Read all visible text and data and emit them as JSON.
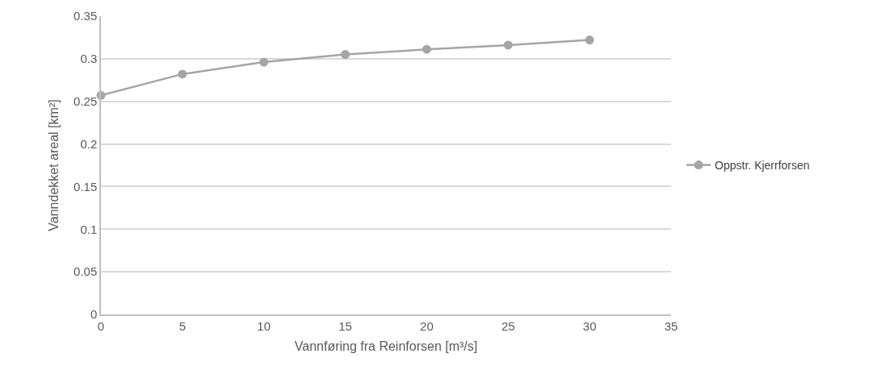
{
  "chart_data": {
    "type": "line",
    "xlabel": "Vannføring fra Reinforsen [m³/s]",
    "ylabel": "Vanndekket areal [km²]",
    "x": [
      0,
      5,
      10,
      15,
      20,
      25,
      30
    ],
    "series": [
      {
        "name": "Oppstr. Kjerrforsen",
        "color": "#a5a5a5",
        "values": [
          0.257,
          0.282,
          0.296,
          0.305,
          0.311,
          0.316,
          0.322
        ]
      }
    ],
    "xlim": [
      0,
      35
    ],
    "xticks": [
      0,
      5,
      10,
      15,
      20,
      25,
      30,
      35
    ],
    "ylim": [
      0,
      0.35
    ],
    "yticks": [
      0,
      0.05,
      0.1,
      0.15,
      0.2,
      0.25,
      0.3,
      0.35
    ],
    "grid": "y",
    "legend": "right",
    "marker": "circle",
    "line_style": "solid"
  }
}
